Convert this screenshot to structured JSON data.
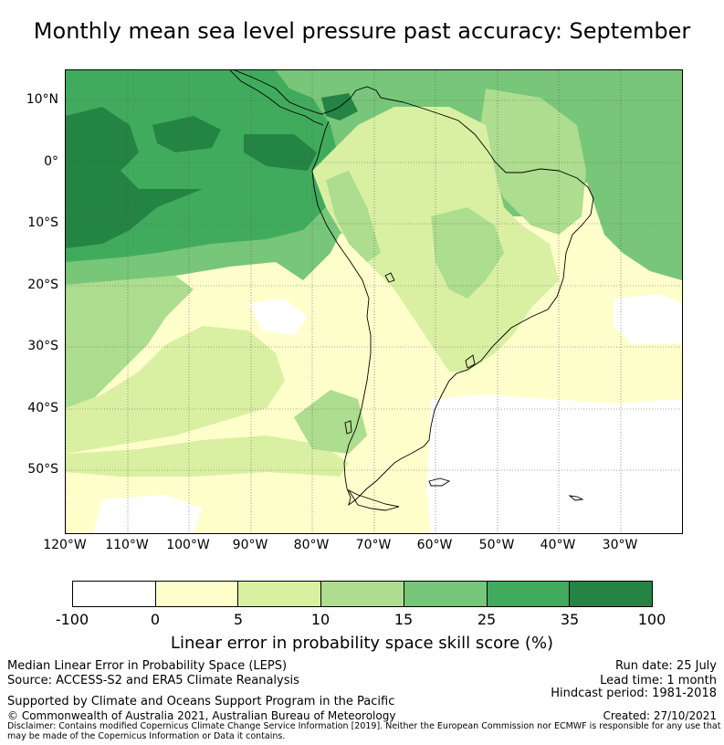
{
  "title": "Monthly mean sea level pressure past accuracy: September",
  "map": {
    "lat_labels": [
      "10°N",
      "0°",
      "10°S",
      "20°S",
      "30°S",
      "40°S",
      "50°S"
    ],
    "lon_labels": [
      "120°W",
      "110°W",
      "100°W",
      "90°W",
      "80°W",
      "70°W",
      "60°W",
      "50°W",
      "40°W",
      "30°W"
    ],
    "lat_range": [
      -60,
      15
    ],
    "lon_range": [
      -120,
      -20
    ],
    "gridlines": true,
    "colors": {
      "white": "#ffffff",
      "c0_5": "#ffffcc",
      "c5_10": "#d9f0a3",
      "c10_15": "#addd8e",
      "c15_25": "#78c679",
      "c25_35": "#41ab5d",
      "c35_100": "#238443"
    }
  },
  "colorbar": {
    "ticks": [
      "-100",
      "0",
      "5",
      "10",
      "15",
      "25",
      "35",
      "100"
    ],
    "colors": [
      "#ffffff",
      "#ffffcc",
      "#d9f0a3",
      "#addd8e",
      "#78c679",
      "#41ab5d",
      "#238443"
    ],
    "label": "Linear error in probability space skill score (%)"
  },
  "footer": {
    "left_line1": "Median Linear Error in Probability Space (LEPS)",
    "left_line2": "Source: ACCESS-S2 and ERA5 Climate Reanalysis",
    "left_line3": "Supported by Climate and Oceans Support Program in the Pacific",
    "left_line4": "© Commonwealth of Australia 2021, Australian Bureau of Meteorology",
    "right_line1": "Run date: 25 July",
    "right_line2": "Lead time: 1 month",
    "right_line3": "Hindcast period: 1981-2018",
    "right_line4": "Created: 27/10/2021",
    "disclaimer": "Disclaimer: Contains modified Copernicus Climate Change Service Information [2019]. Neither the European Commission nor ECMWF is responsible for any use that may be made of the Copernicus Information or Data it contains."
  }
}
